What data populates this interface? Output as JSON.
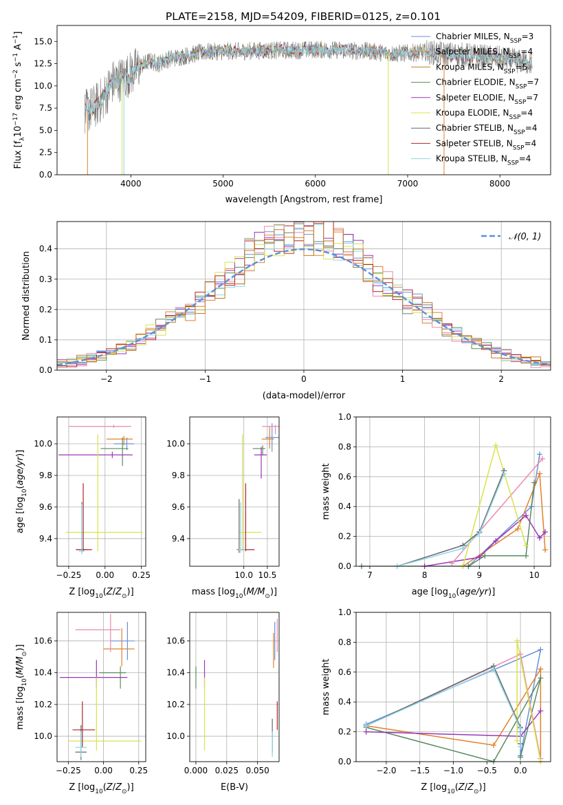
{
  "figure_title": "PLATE=2158, MJD=54209, FIBERID=0125, z=0.101",
  "series_colors": [
    "#6a8fd8",
    "#e0802c",
    "#c07a2a",
    "#5a8a5e",
    "#9b35b8",
    "#d8e34a",
    "#666666",
    "#b22222",
    "#8fd6e8"
  ],
  "legend_models": [
    {
      "label": "Chabrier MILES, N",
      "sub": "SSP",
      "suffix": "=3",
      "color": "#6a8fd8"
    },
    {
      "label": "Salpeter MILES, N",
      "sub": "SSP",
      "suffix": "=4",
      "color": "#e0802c"
    },
    {
      "label": "Kroupa MILES, N",
      "sub": "SSP",
      "suffix": "=5",
      "color": "#c07a2a"
    },
    {
      "label": "Chabrier ELODIE, N",
      "sub": "SSP",
      "suffix": "=7",
      "color": "#5a8a5e"
    },
    {
      "label": "Salpeter ELODIE, N",
      "sub": "SSP",
      "suffix": "=7",
      "color": "#9b35b8"
    },
    {
      "label": "Kroupa ELODIE, N",
      "sub": "SSP",
      "suffix": "=4",
      "color": "#d8e34a"
    },
    {
      "label": "Chabrier STELIB, N",
      "sub": "SSP",
      "suffix": "=4",
      "color": "#666666"
    },
    {
      "label": "Salpeter STELIB, N",
      "sub": "SSP",
      "suffix": "=4",
      "color": "#b22222"
    },
    {
      "label": "Kroupa STELIB, N",
      "sub": "SSP",
      "suffix": "=4",
      "color": "#8fd6e8"
    }
  ],
  "chart_data": [
    {
      "id": "spectrum",
      "type": "line",
      "title": "PLATE=2158, MJD=54209, FIBERID=0125, z=0.101",
      "xlabel": "wavelength [Angstrom, rest frame]",
      "ylabel": "Flux [f",
      "xlim": [
        3200,
        8550
      ],
      "ylim": [
        0,
        16.8
      ],
      "xticks": [
        4000,
        5000,
        6000,
        7000,
        8000
      ],
      "yticks": [
        0.0,
        2.5,
        5.0,
        7.5,
        10.0,
        12.5,
        15.0
      ],
      "anchors_x": [
        3500,
        3600,
        3700,
        3800,
        3900,
        4000,
        4100,
        4200,
        4300,
        4400,
        4600,
        4800,
        5000,
        5200,
        5500,
        5800,
        6000,
        6300,
        6600,
        6800,
        7000,
        7200,
        7400,
        7600,
        7800,
        8000,
        8300
      ],
      "anchors_y": [
        7.0,
        7.6,
        8.6,
        10.4,
        10.8,
        11.4,
        12.2,
        12.8,
        12.5,
        13.0,
        13.4,
        13.8,
        13.9,
        13.9,
        14.0,
        14.0,
        14.1,
        14.0,
        13.9,
        13.6,
        13.7,
        13.8,
        13.6,
        13.5,
        13.3,
        13.1,
        12.6
      ],
      "grid": false
    },
    {
      "id": "residuals",
      "type": "line",
      "xlabel": "(data-model)/error",
      "ylabel": "Normed distribution",
      "xlim": [
        -2.5,
        2.5
      ],
      "ylim": [
        0,
        0.49
      ],
      "xticks": [
        -2,
        -1,
        0,
        1,
        2
      ],
      "yticks": [
        0.0,
        0.1,
        0.2,
        0.3,
        0.4
      ],
      "series": [
        {
          "name": "𝒩(0, 1)",
          "mean": 0,
          "sigma": 1
        }
      ],
      "legend": "top-right",
      "grid": true
    },
    {
      "id": "age_vs_Z",
      "type": "scatter",
      "xlabel": "Z [log",
      "ylabel": "age  [log",
      "xlim": [
        -0.33,
        0.28
      ],
      "ylim": [
        9.225,
        10.17
      ],
      "xticks": [
        -0.25,
        0.0,
        0.25
      ],
      "yticks": [
        9.4,
        9.6,
        9.8,
        10.0
      ],
      "points": [
        {
          "x": 0.15,
          "y": 10.0,
          "xerr": [
            0.09,
            0.05
          ],
          "yerr": [
            0.04,
            0.04
          ],
          "color": "#6a8fd8"
        },
        {
          "x": 0.13,
          "y": 10.03,
          "xerr": [
            0.12,
            0.06
          ],
          "yerr": [
            0.04,
            0.02
          ],
          "color": "#e0802c"
        },
        {
          "x": 0.12,
          "y": 9.97,
          "xerr": [
            0.15,
            0.04
          ],
          "yerr": [
            0.11,
            0.07
          ],
          "color": "#5a8a5e"
        },
        {
          "x": 0.05,
          "y": 9.93,
          "xerr": [
            0.37,
            0.14
          ],
          "yerr": [
            0.02,
            0.02
          ],
          "color": "#9b35b8"
        },
        {
          "x": 0.06,
          "y": 10.11,
          "xerr": [
            0.31,
            0.12
          ],
          "yerr": [
            0.01,
            0.01
          ],
          "color": "#e88aac"
        },
        {
          "x": -0.05,
          "y": 9.44,
          "xerr": [
            0.22,
            0.31
          ],
          "yerr": [
            0.12,
            0.62
          ],
          "color": "#d8e34a"
        },
        {
          "x": -0.16,
          "y": 9.33,
          "xerr": [
            0.04,
            0.04
          ],
          "yerr": [
            0.02,
            0.3
          ],
          "color": "#666666"
        },
        {
          "x": -0.15,
          "y": 9.33,
          "xerr": [
            0.05,
            0.06
          ],
          "yerr": [
            0.01,
            0.42
          ],
          "color": "#b22222"
        },
        {
          "x": -0.16,
          "y": 9.32,
          "xerr": [
            0.02,
            0.02
          ],
          "yerr": [
            0.02,
            0.3
          ],
          "color": "#8fd6e8"
        }
      ],
      "grid": true
    },
    {
      "id": "age_vs_mass",
      "type": "scatter",
      "xlabel": "mass [log",
      "ylabel": "",
      "xlim": [
        8.85,
        10.75
      ],
      "ylim": [
        9.225,
        10.17
      ],
      "xticks": [
        10.0,
        10.5
      ],
      "yticks": [
        9.4,
        9.6,
        9.8,
        10.0
      ],
      "points": [
        {
          "x": 10.6,
          "y": 10.04,
          "xerr": [
            0.14,
            0.15
          ],
          "yerr": [
            0.09,
            0.09
          ],
          "color": "#6a8fd8"
        },
        {
          "x": 10.55,
          "y": 10.03,
          "xerr": [
            0.17,
            0.09
          ],
          "yerr": [
            0.06,
            0.08
          ],
          "color": "#e0802c"
        },
        {
          "x": 10.4,
          "y": 9.97,
          "xerr": [
            0.21,
            0.06
          ],
          "yerr": [
            0.04,
            0.02
          ],
          "color": "#5a8a5e"
        },
        {
          "x": 10.37,
          "y": 9.93,
          "xerr": [
            0.15,
            0.12
          ],
          "yerr": [
            0.15,
            0.05
          ],
          "color": "#9b35b8"
        },
        {
          "x": 10.67,
          "y": 10.11,
          "xerr": [
            0.28,
            0.09
          ],
          "yerr": [
            0.05,
            0.01
          ],
          "color": "#e88aac"
        },
        {
          "x": 9.97,
          "y": 9.44,
          "xerr": [
            0.07,
            0.4
          ],
          "yerr": [
            0.12,
            0.62
          ],
          "color": "#d8e34a"
        },
        {
          "x": 9.9,
          "y": 9.33,
          "xerr": [
            0.05,
            0.13
          ],
          "yerr": [
            0.02,
            0.32
          ],
          "color": "#666666"
        },
        {
          "x": 10.04,
          "y": 9.33,
          "xerr": [
            0.11,
            0.19
          ],
          "yerr": [
            0.01,
            0.42
          ],
          "color": "#b22222"
        },
        {
          "x": 9.93,
          "y": 9.33,
          "xerr": [
            0.05,
            0.1
          ],
          "yerr": [
            0.02,
            0.3
          ],
          "color": "#8fd6e8"
        }
      ],
      "grid": true
    },
    {
      "id": "weight_vs_age",
      "type": "line",
      "xlabel": "age  [log",
      "ylabel": "mass weight",
      "xlim": [
        6.75,
        10.3
      ],
      "ylim": [
        0,
        1.0
      ],
      "xticks": [
        7,
        8,
        9,
        10
      ],
      "yticks": [
        0.0,
        0.2,
        0.4,
        0.6,
        0.8,
        1.0
      ],
      "series": [
        {
          "color": "#6a8fd8",
          "x": [
            8.8,
            9.95,
            10.1
          ],
          "y": [
            0.0,
            0.4,
            0.75
          ]
        },
        {
          "color": "#e0802c",
          "x": [
            8.7,
            9.7,
            10.1,
            10.2
          ],
          "y": [
            0.0,
            0.25,
            0.62,
            0.11
          ]
        },
        {
          "color": "#5a8a5e",
          "x": [
            6.85,
            8.8,
            9.1,
            9.85,
            10.0
          ],
          "y": [
            0.0,
            0.0,
            0.07,
            0.07,
            0.56
          ]
        },
        {
          "color": "#9b35b8",
          "x": [
            8.0,
            9.0,
            9.3,
            9.85,
            10.1,
            10.2
          ],
          "y": [
            0.0,
            0.06,
            0.17,
            0.34,
            0.19,
            0.23
          ]
        },
        {
          "color": "#e88aac",
          "x": [
            8.5,
            10.15
          ],
          "y": [
            0.02,
            0.72
          ]
        },
        {
          "color": "#d8e34a",
          "x": [
            8.7,
            9.3,
            9.85
          ],
          "y": [
            0.0,
            0.81,
            0.14
          ]
        },
        {
          "color": "#666666",
          "x": [
            7.5,
            8.7,
            9.0,
            9.45
          ],
          "y": [
            0.0,
            0.14,
            0.23,
            0.64
          ]
        },
        {
          "color": "#8fd6e8",
          "x": [
            7.5,
            8.7,
            9.0,
            9.45
          ],
          "y": [
            0.0,
            0.12,
            0.22,
            0.62
          ]
        }
      ],
      "grid": true
    },
    {
      "id": "mass_vs_Z",
      "type": "scatter",
      "xlabel": "Z [log",
      "ylabel": "mass [log",
      "xlim": [
        -0.33,
        0.3
      ],
      "ylim": [
        9.84,
        10.78
      ],
      "xticks": [
        -0.25,
        0.0,
        0.25
      ],
      "yticks": [
        10.0,
        10.2,
        10.4,
        10.6
      ],
      "points": [
        {
          "x": 0.17,
          "y": 10.6,
          "xerr": [
            0.12,
            0.05
          ],
          "yerr": [
            0.12,
            0.12
          ],
          "color": "#6a8fd8"
        },
        {
          "x": 0.13,
          "y": 10.55,
          "xerr": [
            0.13,
            0.09
          ],
          "yerr": [
            0.11,
            0.13
          ],
          "color": "#e0802c"
        },
        {
          "x": 0.12,
          "y": 10.4,
          "xerr": [
            0.15,
            0.04
          ],
          "yerr": [
            0.1,
            0.04
          ],
          "color": "#5a8a5e"
        },
        {
          "x": -0.05,
          "y": 10.37,
          "xerr": [
            0.26,
            0.22
          ],
          "yerr": [
            0.06,
            0.11
          ],
          "color": "#9b35b8"
        },
        {
          "x": 0.05,
          "y": 10.67,
          "xerr": [
            0.25,
            0.07
          ],
          "yerr": [
            0.14,
            0.1
          ],
          "color": "#e88aac"
        },
        {
          "x": -0.05,
          "y": 9.97,
          "xerr": [
            0.2,
            0.32
          ],
          "yerr": [
            0.06,
            0.4
          ],
          "color": "#d8e34a"
        },
        {
          "x": -0.16,
          "y": 9.9,
          "xerr": [
            0.04,
            0.04
          ],
          "yerr": [
            0.05,
            0.17
          ],
          "color": "#666666"
        },
        {
          "x": -0.15,
          "y": 10.04,
          "xerr": [
            0.07,
            0.09
          ],
          "yerr": [
            0.11,
            0.18
          ],
          "color": "#b22222"
        },
        {
          "x": -0.16,
          "y": 9.93,
          "xerr": [
            0.04,
            0.04
          ],
          "yerr": [
            0.06,
            0.1
          ],
          "color": "#8fd6e8"
        }
      ],
      "grid": true
    },
    {
      "id": "mass_vs_EBV",
      "type": "scatter",
      "xlabel": "E(B-V)",
      "ylabel": "",
      "xlim": [
        -0.005,
        0.0675
      ],
      "ylim": [
        9.84,
        10.78
      ],
      "xticks": [
        0.0,
        0.025,
        0.05
      ],
      "xticklabels": [
        "0.000",
        "0.025",
        "0.050"
      ],
      "yticks": [
        10.0,
        10.2,
        10.4,
        10.6
      ],
      "points": [
        {
          "x": 0.064,
          "y": 10.6,
          "yerr": [
            0.12,
            0.12
          ],
          "color": "#6a8fd8"
        },
        {
          "x": 0.063,
          "y": 10.55,
          "yerr": [
            0.12,
            0.1
          ],
          "color": "#e0802c"
        },
        {
          "x": 0.0,
          "y": 10.4,
          "yerr": [
            0.1,
            0.04
          ],
          "color": "#5a8a5e"
        },
        {
          "x": 0.007,
          "y": 10.37,
          "yerr": [
            0.06,
            0.11
          ],
          "color": "#9b35b8"
        },
        {
          "x": 0.066,
          "y": 10.67,
          "yerr": [
            0.14,
            0.07
          ],
          "color": "#e88aac"
        },
        {
          "x": 0.007,
          "y": 9.97,
          "yerr": [
            0.06,
            0.4
          ],
          "color": "#d8e34a"
        },
        {
          "x": 0.062,
          "y": 10.0,
          "yerr": [
            0.1,
            0.11
          ],
          "color": "#666666"
        },
        {
          "x": 0.066,
          "y": 10.1,
          "yerr": [
            0.06,
            0.12
          ],
          "color": "#b22222"
        },
        {
          "x": 0.062,
          "y": 9.93,
          "yerr": [
            0.06,
            0.1
          ],
          "color": "#8fd6e8"
        }
      ],
      "grid": true
    },
    {
      "id": "weight_vs_Z",
      "type": "line",
      "xlabel": "Z [log",
      "ylabel": "mass weight",
      "xlim": [
        -2.45,
        0.45
      ],
      "ylim": [
        0,
        1.0
      ],
      "xticks": [
        -2.0,
        -1.5,
        -1.0,
        -0.5,
        0.0
      ],
      "yticks": [
        0.0,
        0.2,
        0.4,
        0.6,
        0.8,
        1.0
      ],
      "series": [
        {
          "color": "#6a8fd8",
          "x": [
            -2.3,
            0.3,
            0.0,
            0.0
          ],
          "y": [
            0.25,
            0.75,
            0.04,
            0.2
          ]
        },
        {
          "color": "#e0802c",
          "x": [
            -2.3,
            -0.4,
            0.3,
            0.3
          ],
          "y": [
            0.24,
            0.11,
            0.62,
            0.0
          ]
        },
        {
          "color": "#5a8a5e",
          "x": [
            -2.3,
            -0.4,
            0.3,
            0.0
          ],
          "y": [
            0.23,
            0.0,
            0.56,
            0.03
          ]
        },
        {
          "color": "#9b35b8",
          "x": [
            -2.3,
            0.0,
            0.3
          ],
          "y": [
            0.2,
            0.17,
            0.34
          ]
        },
        {
          "color": "#e88aac",
          "x": [
            -2.3,
            0.0,
            0.3
          ],
          "y": [
            0.24,
            0.72,
            0.02
          ]
        },
        {
          "color": "#d8e34a",
          "x": [
            -0.05,
            -0.05,
            0.3
          ],
          "y": [
            0.14,
            0.81,
            0.0
          ]
        },
        {
          "color": "#666666",
          "x": [
            -2.3,
            -0.4,
            0.0,
            0.0
          ],
          "y": [
            0.24,
            0.64,
            0.23,
            0.12
          ]
        },
        {
          "color": "#8fd6e8",
          "x": [
            -2.3,
            -0.4,
            0.0,
            0.0
          ],
          "y": [
            0.24,
            0.62,
            0.22,
            0.1
          ]
        }
      ],
      "grid": true
    }
  ]
}
